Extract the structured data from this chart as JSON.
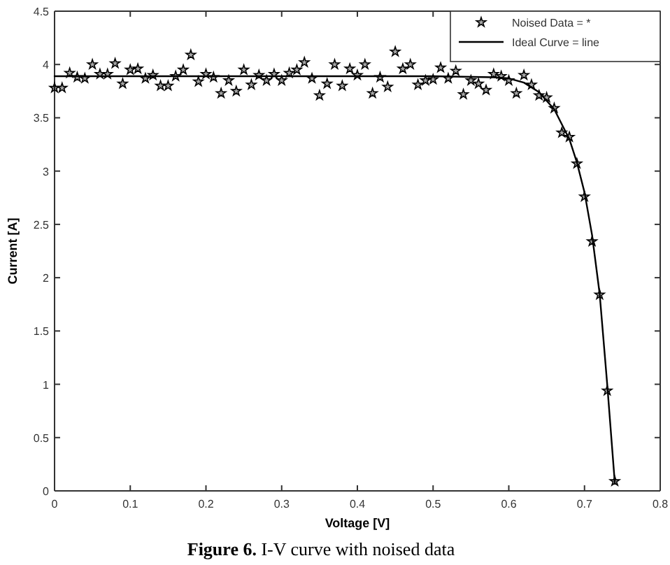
{
  "chart_data": {
    "type": "scatter",
    "xlabel": "Voltage [V]",
    "ylabel": "Current [A]",
    "annotations": [
      "Figure 6. I-V curve with noised data"
    ],
    "xlim": [
      0,
      0.8
    ],
    "ylim": [
      0,
      4.5
    ],
    "xticks": [
      0,
      0.1,
      0.2,
      0.3,
      0.4,
      0.5,
      0.6,
      0.7,
      0.8
    ],
    "yticks": [
      0,
      0.5,
      1,
      1.5,
      2,
      2.5,
      3,
      3.5,
      4,
      4.5
    ],
    "grid": false,
    "legend": "top right",
    "series": [
      {
        "name": "Noised Data = *",
        "type": "scatter",
        "marker": "star",
        "color": "#000000",
        "x": [
          0,
          0.01,
          0.02,
          0.03,
          0.04,
          0.05,
          0.06,
          0.07,
          0.08,
          0.09,
          0.1,
          0.11,
          0.12,
          0.13,
          0.14,
          0.15,
          0.16,
          0.17,
          0.18,
          0.19,
          0.2,
          0.21,
          0.22,
          0.23,
          0.24,
          0.25,
          0.26,
          0.27,
          0.28,
          0.29,
          0.3,
          0.31,
          0.32,
          0.33,
          0.34,
          0.35,
          0.36,
          0.37,
          0.38,
          0.39,
          0.4,
          0.41,
          0.42,
          0.43,
          0.44,
          0.45,
          0.46,
          0.47,
          0.48,
          0.49,
          0.5,
          0.51,
          0.52,
          0.53,
          0.54,
          0.55,
          0.56,
          0.57,
          0.58,
          0.59,
          0.6,
          0.61,
          0.62,
          0.63,
          0.64,
          0.65,
          0.66,
          0.67,
          0.68,
          0.69,
          0.7,
          0.71,
          0.72,
          0.73,
          0.74
        ],
        "values": [
          3.78,
          3.78,
          3.92,
          3.88,
          3.87,
          4.0,
          3.91,
          3.91,
          4.01,
          3.82,
          3.95,
          3.96,
          3.87,
          3.9,
          3.8,
          3.8,
          3.89,
          3.95,
          4.09,
          3.84,
          3.91,
          3.88,
          3.73,
          3.85,
          3.75,
          3.95,
          3.81,
          3.9,
          3.85,
          3.91,
          3.85,
          3.92,
          3.95,
          4.02,
          3.87,
          3.71,
          3.82,
          4.0,
          3.8,
          3.96,
          3.9,
          4.0,
          3.73,
          3.88,
          3.79,
          4.12,
          3.96,
          4.0,
          3.81,
          3.85,
          3.86,
          3.97,
          3.87,
          3.94,
          3.72,
          3.85,
          3.82,
          3.76,
          3.91,
          3.89,
          3.85,
          3.73,
          3.9,
          3.81,
          3.71,
          3.69,
          3.59,
          3.36,
          3.32,
          3.07,
          2.76,
          2.34,
          1.84,
          0.94,
          0.09
        ]
      },
      {
        "name": "Ideal Curve = line",
        "type": "line",
        "marker": "none",
        "line_style": "solid",
        "color": "#000000",
        "x": [
          0,
          0.5,
          0.58,
          0.6,
          0.62,
          0.64,
          0.66,
          0.68,
          0.69,
          0.7,
          0.71,
          0.72,
          0.73,
          0.74
        ],
        "values": [
          3.89,
          3.89,
          3.88,
          3.87,
          3.83,
          3.74,
          3.58,
          3.3,
          3.08,
          2.8,
          2.4,
          1.85,
          1.0,
          0.08
        ]
      }
    ]
  }
}
